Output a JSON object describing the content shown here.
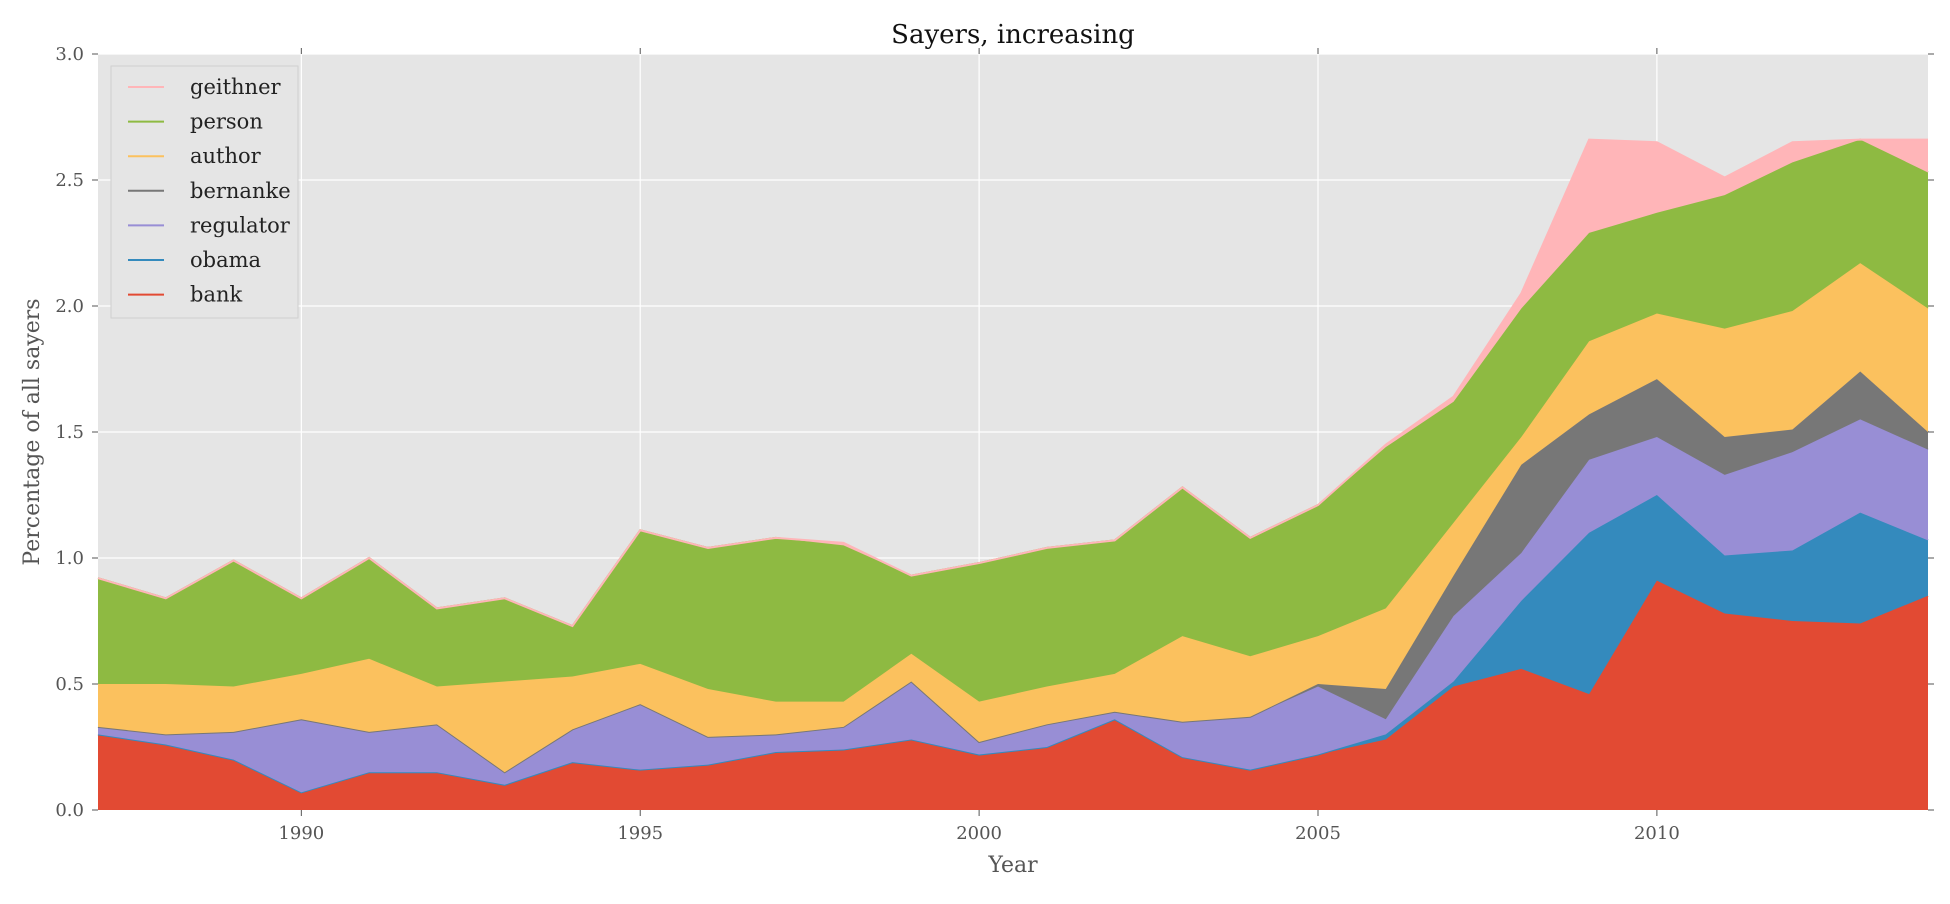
{
  "chart_data": {
    "type": "area",
    "stacked": true,
    "title": "Sayers, increasing",
    "xlabel": "Year",
    "ylabel": "Percentage of all sayers",
    "xlim": [
      1987,
      2014
    ],
    "ylim": [
      0.0,
      3.0
    ],
    "xticks": [
      1990,
      1995,
      2000,
      2005,
      2010
    ],
    "yticks": [
      0.0,
      0.5,
      1.0,
      1.5,
      2.0,
      2.5,
      3.0
    ],
    "xtick_labels": [
      "1990",
      "1995",
      "2000",
      "2005",
      "2010"
    ],
    "ytick_labels": [
      "0.0",
      "0.5",
      "1.0",
      "1.5",
      "2.0",
      "2.5",
      "3.0"
    ],
    "grid": true,
    "legend_position": "top-left",
    "x": [
      1987,
      1988,
      1989,
      1990,
      1991,
      1992,
      1993,
      1994,
      1995,
      1996,
      1997,
      1998,
      1999,
      2000,
      2001,
      2002,
      2003,
      2004,
      2005,
      2006,
      2007,
      2008,
      2009,
      2010,
      2011,
      2012,
      2013,
      2014
    ],
    "series": [
      {
        "name": "bank",
        "color": "#E24A33",
        "values": [
          0.3,
          0.26,
          0.2,
          0.07,
          0.15,
          0.15,
          0.1,
          0.19,
          0.16,
          0.18,
          0.23,
          0.24,
          0.28,
          0.22,
          0.25,
          0.36,
          0.21,
          0.16,
          0.22,
          0.28,
          0.49,
          0.56,
          0.46,
          0.91,
          0.78,
          0.75,
          0.74,
          0.85
        ]
      },
      {
        "name": "obama",
        "color": "#348ABD",
        "values": [
          0.0,
          0.0,
          0.0,
          0.0,
          0.0,
          0.0,
          0.0,
          0.0,
          0.0,
          0.0,
          0.0,
          0.0,
          0.0,
          0.0,
          0.0,
          0.0,
          0.0,
          0.0,
          0.0,
          0.02,
          0.02,
          0.27,
          0.64,
          0.34,
          0.23,
          0.28,
          0.44,
          0.22
        ]
      },
      {
        "name": "regulator",
        "color": "#988ED5",
        "values": [
          0.03,
          0.04,
          0.11,
          0.29,
          0.16,
          0.19,
          0.05,
          0.13,
          0.26,
          0.11,
          0.07,
          0.09,
          0.23,
          0.05,
          0.09,
          0.03,
          0.14,
          0.21,
          0.27,
          0.06,
          0.26,
          0.19,
          0.29,
          0.23,
          0.32,
          0.39,
          0.37,
          0.36
        ]
      },
      {
        "name": "bernanke",
        "color": "#777777",
        "values": [
          0.0,
          0.0,
          0.0,
          0.0,
          0.0,
          0.0,
          0.0,
          0.0,
          0.0,
          0.0,
          0.0,
          0.0,
          0.0,
          0.0,
          0.0,
          0.0,
          0.0,
          0.0,
          0.01,
          0.12,
          0.16,
          0.35,
          0.18,
          0.23,
          0.15,
          0.09,
          0.19,
          0.07
        ]
      },
      {
        "name": "author",
        "color": "#FBC15E",
        "values": [
          0.17,
          0.2,
          0.18,
          0.18,
          0.29,
          0.15,
          0.36,
          0.21,
          0.16,
          0.19,
          0.13,
          0.1,
          0.11,
          0.16,
          0.15,
          0.15,
          0.34,
          0.24,
          0.19,
          0.32,
          0.21,
          0.11,
          0.29,
          0.26,
          0.43,
          0.47,
          0.43,
          0.49
        ]
      },
      {
        "name": "person",
        "color": "#8EBA42",
        "values": [
          0.42,
          0.34,
          0.5,
          0.3,
          0.4,
          0.31,
          0.33,
          0.2,
          0.53,
          0.56,
          0.65,
          0.62,
          0.31,
          0.55,
          0.55,
          0.53,
          0.59,
          0.47,
          0.52,
          0.64,
          0.48,
          0.51,
          0.43,
          0.4,
          0.53,
          0.59,
          0.49,
          0.54
        ]
      },
      {
        "name": "geithner",
        "color": "#FFB5B8",
        "values": [
          0.0,
          0.0,
          0.0,
          0.0,
          0.0,
          0.0,
          0.0,
          0.0,
          0.0,
          0.0,
          0.0,
          0.01,
          0.0,
          0.0,
          0.0,
          0.0,
          0.0,
          0.0,
          0.0,
          0.01,
          0.02,
          0.06,
          0.37,
          0.28,
          0.07,
          0.08,
          0.0,
          0.13
        ]
      }
    ],
    "legend_order": [
      "geithner",
      "person",
      "author",
      "bernanke",
      "regulator",
      "obama",
      "bank"
    ]
  }
}
